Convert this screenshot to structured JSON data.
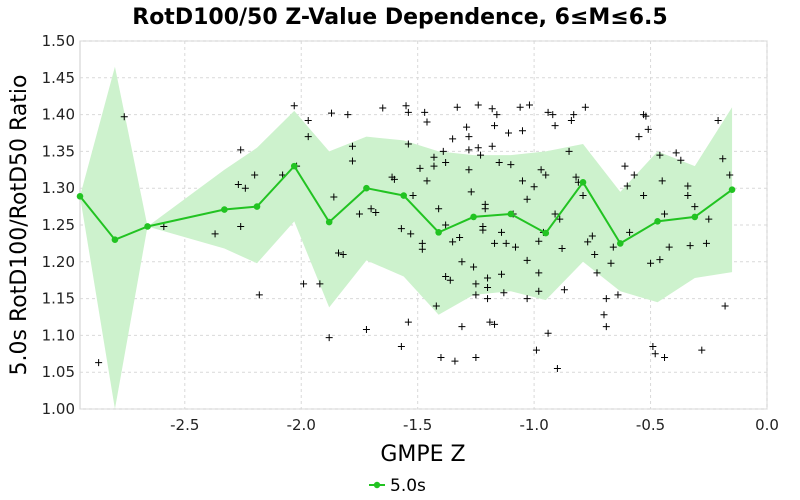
{
  "chart_data": {
    "type": "line",
    "title": "RotD100/50 Z-Value Dependence, 6≤M≤6.5",
    "xlabel": "GMPE Z",
    "ylabel": "5.0s RotD100/RotD50 Ratio",
    "xlim": [
      -2.95,
      0.0
    ],
    "ylim": [
      1.0,
      1.5
    ],
    "x_ticks": [
      "-2.5",
      "-2.0",
      "-1.5",
      "-1.0",
      "-0.5",
      "0.0"
    ],
    "y_ticks": [
      "1.00",
      "1.05",
      "1.10",
      "1.15",
      "1.20",
      "1.25",
      "1.30",
      "1.35",
      "1.40",
      "1.45",
      "1.50"
    ],
    "grid": true,
    "legend_position": "bottom",
    "colors": {
      "line": "#22c322",
      "band": "#cdf2cd",
      "scatter": "#000000",
      "grid": "#d9d9d9"
    },
    "series": [
      {
        "name": "5.0s",
        "x": [
          -2.95,
          -2.8,
          -2.66,
          -2.33,
          -2.19,
          -2.03,
          -1.88,
          -1.72,
          -1.56,
          -1.41,
          -1.26,
          -1.1,
          -0.95,
          -0.79,
          -0.63,
          -0.47,
          -0.31,
          -0.15
        ],
        "y": [
          1.289,
          1.23,
          1.248,
          1.271,
          1.275,
          1.33,
          1.254,
          1.3,
          1.29,
          1.24,
          1.261,
          1.265,
          1.239,
          1.308,
          1.225,
          1.255,
          1.261,
          1.298
        ],
        "upper": [
          1.289,
          1.465,
          1.248,
          1.325,
          1.355,
          1.405,
          1.35,
          1.37,
          1.365,
          1.35,
          1.345,
          1.345,
          1.35,
          1.36,
          1.295,
          1.35,
          1.33,
          1.41
        ],
        "lower": [
          1.289,
          1.0,
          1.248,
          1.218,
          1.198,
          1.255,
          1.138,
          1.202,
          1.18,
          1.128,
          1.155,
          1.16,
          1.148,
          1.2,
          1.16,
          1.145,
          1.178,
          1.186
        ]
      }
    ],
    "scatter_points": [
      [
        -2.87,
        1.063
      ],
      [
        -2.76,
        1.397
      ],
      [
        -2.59,
        1.248
      ],
      [
        -2.37,
        1.238
      ],
      [
        -2.27,
        1.305
      ],
      [
        -2.26,
        1.352
      ],
      [
        -2.26,
        1.248
      ],
      [
        -2.24,
        1.3
      ],
      [
        -2.2,
        1.318
      ],
      [
        -2.18,
        1.155
      ],
      [
        -2.08,
        1.318
      ],
      [
        -2.03,
        1.412
      ],
      [
        -2.02,
        1.33
      ],
      [
        -1.99,
        1.17
      ],
      [
        -1.97,
        1.392
      ],
      [
        -1.97,
        1.37
      ],
      [
        -1.92,
        1.17
      ],
      [
        -1.88,
        1.097
      ],
      [
        -1.87,
        1.402
      ],
      [
        -1.86,
        1.288
      ],
      [
        -1.84,
        1.212
      ],
      [
        -1.82,
        1.21
      ],
      [
        -1.8,
        1.4
      ],
      [
        -1.78,
        1.357
      ],
      [
        -1.78,
        1.337
      ],
      [
        -1.75,
        1.265
      ],
      [
        -1.72,
        1.108
      ],
      [
        -1.7,
        1.272
      ],
      [
        -1.68,
        1.267
      ],
      [
        -1.65,
        1.409
      ],
      [
        -1.61,
        1.315
      ],
      [
        -1.6,
        1.312
      ],
      [
        -1.57,
        1.085
      ],
      [
        -1.57,
        1.245
      ],
      [
        -1.55,
        1.412
      ],
      [
        -1.54,
        1.403
      ],
      [
        -1.54,
        1.36
      ],
      [
        -1.54,
        1.118
      ],
      [
        -1.53,
        1.238
      ],
      [
        -1.52,
        1.29
      ],
      [
        -1.49,
        1.327
      ],
      [
        -1.48,
        1.225
      ],
      [
        -1.48,
        1.217
      ],
      [
        -1.47,
        1.403
      ],
      [
        -1.46,
        1.31
      ],
      [
        -1.43,
        1.33
      ],
      [
        -1.42,
        1.14
      ],
      [
        -1.41,
        1.272
      ],
      [
        -1.4,
        1.07
      ],
      [
        -1.39,
        1.35
      ],
      [
        -1.38,
        1.335
      ],
      [
        -1.38,
        1.25
      ],
      [
        -1.38,
        1.18
      ],
      [
        -1.36,
        1.175
      ],
      [
        -1.35,
        1.367
      ],
      [
        -1.35,
        1.227
      ],
      [
        -1.34,
        1.065
      ],
      [
        -1.33,
        1.41
      ],
      [
        -1.32,
        1.233
      ],
      [
        -1.31,
        1.2
      ],
      [
        -1.31,
        1.112
      ],
      [
        -1.29,
        1.383
      ],
      [
        -1.28,
        1.352
      ],
      [
        -1.28,
        1.37
      ],
      [
        -1.28,
        1.325
      ],
      [
        -1.27,
        1.295
      ],
      [
        -1.26,
        1.193
      ],
      [
        -1.25,
        1.07
      ],
      [
        -1.25,
        1.17
      ],
      [
        -1.25,
        1.155
      ],
      [
        -1.24,
        1.413
      ],
      [
        -1.24,
        1.355
      ],
      [
        -1.23,
        1.345
      ],
      [
        -1.22,
        1.248
      ],
      [
        -1.22,
        1.243
      ],
      [
        -1.21,
        1.278
      ],
      [
        -1.21,
        1.272
      ],
      [
        -1.2,
        1.178
      ],
      [
        -1.2,
        1.165
      ],
      [
        -1.2,
        1.15
      ],
      [
        -1.19,
        1.118
      ],
      [
        -1.18,
        1.408
      ],
      [
        -1.18,
        1.357
      ],
      [
        -1.17,
        1.385
      ],
      [
        -1.17,
        1.225
      ],
      [
        -1.17,
        1.115
      ],
      [
        -1.16,
        1.4
      ],
      [
        -1.15,
        1.335
      ],
      [
        -1.14,
        1.24
      ],
      [
        -1.14,
        1.183
      ],
      [
        -1.13,
        1.158
      ],
      [
        -1.12,
        1.225
      ],
      [
        -1.11,
        1.375
      ],
      [
        -1.1,
        1.332
      ],
      [
        -1.09,
        1.265
      ],
      [
        -1.08,
        1.22
      ],
      [
        -1.06,
        1.41
      ],
      [
        -1.05,
        1.378
      ],
      [
        -1.05,
        1.31
      ],
      [
        -1.03,
        1.285
      ],
      [
        -1.03,
        1.15
      ],
      [
        -1.03,
        1.202
      ],
      [
        -1.02,
        1.413
      ],
      [
        -1.0,
        1.302
      ],
      [
        -0.99,
        1.08
      ],
      [
        -0.98,
        1.228
      ],
      [
        -0.98,
        1.185
      ],
      [
        -0.98,
        1.16
      ],
      [
        -0.97,
        1.325
      ],
      [
        -0.96,
        1.24
      ],
      [
        -0.95,
        1.318
      ],
      [
        -0.94,
        1.403
      ],
      [
        -0.94,
        1.103
      ],
      [
        -0.92,
        1.4
      ],
      [
        -0.91,
        1.385
      ],
      [
        -0.91,
        1.265
      ],
      [
        -0.9,
        1.055
      ],
      [
        -0.89,
        1.258
      ],
      [
        -0.88,
        1.218
      ],
      [
        -0.87,
        1.162
      ],
      [
        -0.85,
        1.35
      ],
      [
        -0.84,
        1.392
      ],
      [
        -0.83,
        1.4
      ],
      [
        -0.82,
        1.315
      ],
      [
        -0.81,
        1.308
      ],
      [
        -0.79,
        1.29
      ],
      [
        -0.78,
        1.41
      ],
      [
        -0.77,
        1.227
      ],
      [
        -0.74,
        1.21
      ],
      [
        -0.73,
        1.185
      ],
      [
        -0.7,
        1.128
      ],
      [
        -0.69,
        1.112
      ],
      [
        -0.67,
        1.198
      ],
      [
        -0.66,
        1.22
      ],
      [
        -0.64,
        1.155
      ],
      [
        -0.61,
        1.33
      ],
      [
        -0.6,
        1.303
      ],
      [
        -0.59,
        1.24
      ],
      [
        -0.57,
        1.318
      ],
      [
        -0.53,
        1.29
      ],
      [
        -0.52,
        1.398
      ],
      [
        -0.51,
        1.38
      ],
      [
        -0.5,
        1.198
      ],
      [
        -0.49,
        1.085
      ],
      [
        -0.48,
        1.075
      ],
      [
        -0.46,
        1.345
      ],
      [
        -0.45,
        1.31
      ],
      [
        -0.44,
        1.07
      ],
      [
        -0.42,
        1.22
      ],
      [
        -0.39,
        1.348
      ],
      [
        -0.37,
        1.338
      ],
      [
        -0.34,
        1.29
      ],
      [
        -0.33,
        1.222
      ],
      [
        -0.31,
        1.275
      ],
      [
        -0.28,
        1.08
      ],
      [
        -0.26,
        1.225
      ],
      [
        -0.25,
        1.258
      ],
      [
        -0.21,
        1.392
      ],
      [
        -0.19,
        1.34
      ],
      [
        -0.18,
        1.14
      ],
      [
        -0.16,
        1.318
      ],
      [
        -0.53,
        1.4
      ],
      [
        -0.55,
        1.37
      ],
      [
        -0.34,
        1.303
      ],
      [
        -0.69,
        1.15
      ],
      [
        -1.43,
        1.342
      ],
      [
        -1.46,
        1.39
      ],
      [
        -0.75,
        1.235
      ],
      [
        -0.44,
        1.265
      ],
      [
        -0.46,
        1.203
      ]
    ]
  }
}
